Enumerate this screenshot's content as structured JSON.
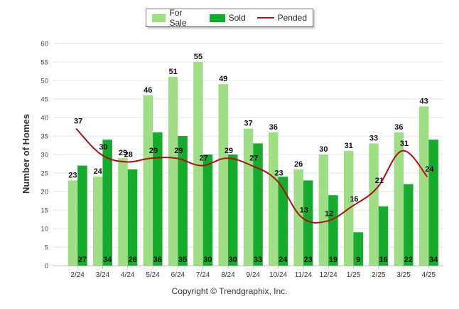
{
  "chart_data": {
    "type": "bar",
    "categories": [
      "2/24",
      "3/24",
      "4/24",
      "5/24",
      "6/24",
      "7/24",
      "8/24",
      "9/24",
      "10/24",
      "11/24",
      "12/24",
      "1/25",
      "2/25",
      "3/25",
      "4/25"
    ],
    "series": [
      {
        "name": "For Sale",
        "type": "bar",
        "color": "#9fdd86",
        "values": [
          23,
          24,
          29,
          46,
          51,
          55,
          49,
          37,
          36,
          26,
          30,
          31,
          33,
          36,
          43
        ]
      },
      {
        "name": "Sold",
        "type": "bar",
        "color": "#16ab2c",
        "values": [
          27,
          34,
          26,
          36,
          35,
          30,
          30,
          33,
          24,
          23,
          19,
          9,
          16,
          22,
          34
        ]
      },
      {
        "name": "Pended",
        "type": "line",
        "color": "#b01010",
        "values": [
          37,
          30,
          28,
          29,
          29,
          27,
          29,
          27,
          23,
          13,
          12,
          16,
          21,
          31,
          24
        ]
      }
    ],
    "title": "",
    "xlabel": "",
    "ylabel": "Number of Homes",
    "ylim": [
      0,
      60
    ],
    "yticks": [
      0,
      5,
      10,
      15,
      20,
      25,
      30,
      35,
      40,
      45,
      50,
      55,
      60
    ],
    "grid": true,
    "legend_position": "top-center"
  },
  "footer": {
    "copyright": "Copyright © Trendgraphix, Inc."
  }
}
